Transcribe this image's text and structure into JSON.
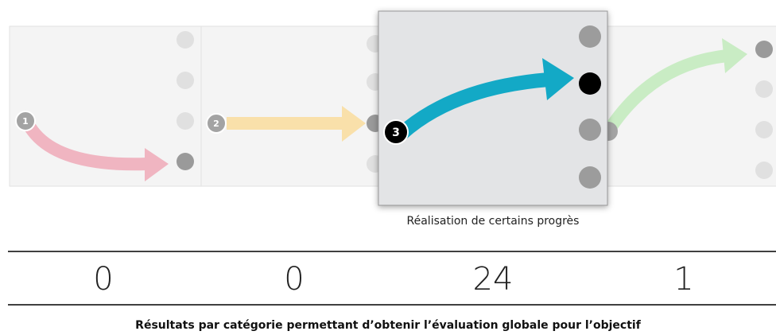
{
  "steps": [
    {
      "label": "1"
    },
    {
      "label": "2"
    },
    {
      "label": "3"
    }
  ],
  "highlight_caption": "Réalisation de certains progrès",
  "counts": [
    "0",
    "0",
    "24",
    "1"
  ],
  "footer": "Résultats par catégorie permettant d’obtenir l’évaluation globale pour l’objectif"
}
